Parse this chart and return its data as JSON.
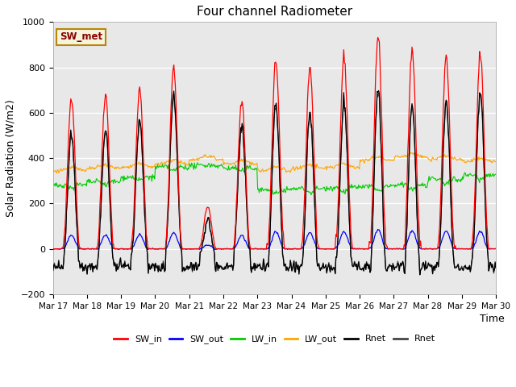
{
  "title": "Four channel Radiometer",
  "xlabel": "Time",
  "ylabel": "Solar Radiation (W/m2)",
  "ylim": [
    -200,
    1000
  ],
  "annotation_text": "SW_met",
  "annotation_color": "#8B0000",
  "annotation_bg": "#F5F5DC",
  "annotation_border": "#B8860B",
  "x_tick_labels": [
    "Mar 17",
    "Mar 18",
    "Mar 19",
    "Mar 20",
    "Mar 21",
    "Mar 22",
    "Mar 23",
    "Mar 24",
    "Mar 25",
    "Mar 26",
    "Mar 27",
    "Mar 28",
    "Mar 29",
    "Mar 30"
  ],
  "colors": {
    "SW_in": "#FF0000",
    "SW_out": "#0000FF",
    "LW_in": "#00CC00",
    "LW_out": "#FFA500",
    "Rnet_black": "#000000",
    "Rnet_dark": "#444444"
  },
  "legend_entries": [
    "SW_in",
    "SW_out",
    "LW_in",
    "LW_out",
    "Rnet",
    "Rnet"
  ],
  "legend_colors": [
    "#FF0000",
    "#0000FF",
    "#00CC00",
    "#FFA500",
    "#000000",
    "#444444"
  ],
  "plot_bg_color": "#E8E8E8",
  "n_days": 13,
  "seed": 42,
  "hours_per_day": 48
}
